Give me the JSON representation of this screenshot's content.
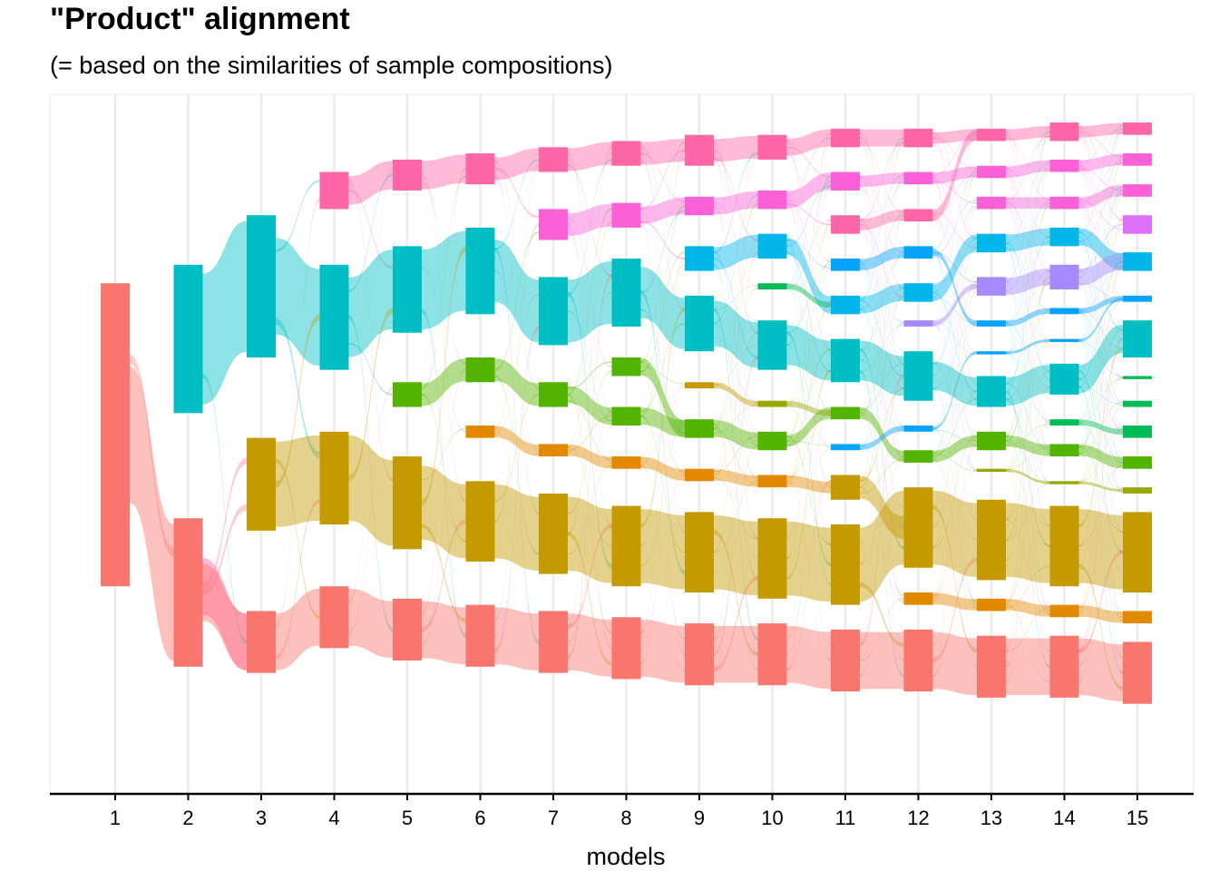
{
  "chart_data": {
    "type": "alluvial",
    "title": "\"Product\" alignment",
    "subtitle": "(= based on the similarities of sample compositions)",
    "xlabel": "models",
    "ylabel": "",
    "x": [
      1,
      2,
      3,
      4,
      5,
      6,
      7,
      8,
      9,
      10,
      11,
      12,
      13,
      14,
      15
    ],
    "grid": "vertical major only",
    "legend": "none",
    "palette": {
      "red": "#F8766D",
      "orange": "#E38900",
      "olive": "#C49A00",
      "olive2": "#99A800",
      "green": "#53B400",
      "teal": "#00BC56",
      "cyan": "#00C094",
      "sky": "#00BFC4",
      "blue": "#00B6EB",
      "azure": "#06A4FF",
      "royal": "#A58AFF",
      "purple": "#DF70F8",
      "magenta": "#FB61D7",
      "pink": "#FF66A8"
    },
    "nodes": [
      [
        {
          "c": "red",
          "s": 0.44,
          "e": 0.93
        }
      ],
      [
        {
          "c": "pink",
          "s": 0.82,
          "e": 1.04,
          "hidden": true
        },
        {
          "c": "sky",
          "s": 0.41,
          "e": 0.65
        },
        {
          "c": "red",
          "s": 0.82,
          "e": 1.06
        }
      ],
      [
        {
          "c": "sky",
          "s": 0.33,
          "e": 0.56
        },
        {
          "c": "olive",
          "s": 0.69,
          "e": 0.84
        },
        {
          "c": "red",
          "s": 0.97,
          "e": 1.07
        }
      ],
      [
        {
          "c": "pink",
          "s": 0.26,
          "e": 0.32
        },
        {
          "c": "sky",
          "s": 0.41,
          "e": 0.58
        },
        {
          "c": "olive",
          "s": 0.68,
          "e": 0.83
        },
        {
          "c": "red",
          "s": 0.93,
          "e": 1.03
        }
      ],
      [
        {
          "c": "pink",
          "s": 0.24,
          "e": 0.29
        },
        {
          "c": "sky",
          "s": 0.38,
          "e": 0.52
        },
        {
          "c": "green",
          "s": 0.6,
          "e": 0.64
        },
        {
          "c": "olive",
          "s": 0.72,
          "e": 0.87
        },
        {
          "c": "red",
          "s": 0.95,
          "e": 1.05
        }
      ],
      [
        {
          "c": "pink",
          "s": 0.23,
          "e": 0.28
        },
        {
          "c": "sky",
          "s": 0.35,
          "e": 0.49
        },
        {
          "c": "green",
          "s": 0.56,
          "e": 0.6
        },
        {
          "c": "orange",
          "s": 0.67,
          "e": 0.69
        },
        {
          "c": "olive",
          "s": 0.76,
          "e": 0.89
        },
        {
          "c": "red",
          "s": 0.96,
          "e": 1.06
        }
      ],
      [
        {
          "c": "pink",
          "s": 0.22,
          "e": 0.26
        },
        {
          "c": "magenta",
          "s": 0.32,
          "e": 0.37
        },
        {
          "c": "sky",
          "s": 0.43,
          "e": 0.54
        },
        {
          "c": "green",
          "s": 0.6,
          "e": 0.64
        },
        {
          "c": "orange",
          "s": 0.7,
          "e": 0.72
        },
        {
          "c": "olive",
          "s": 0.78,
          "e": 0.91
        },
        {
          "c": "red",
          "s": 0.97,
          "e": 1.07
        }
      ],
      [
        {
          "c": "pink",
          "s": 0.21,
          "e": 0.25
        },
        {
          "c": "magenta",
          "s": 0.31,
          "e": 0.35
        },
        {
          "c": "sky",
          "s": 0.4,
          "e": 0.51
        },
        {
          "c": "green",
          "s": 0.56,
          "e": 0.59
        },
        {
          "c": "green",
          "s": 0.64,
          "e": 0.67
        },
        {
          "c": "orange",
          "s": 0.72,
          "e": 0.74
        },
        {
          "c": "olive",
          "s": 0.8,
          "e": 0.93
        },
        {
          "c": "red",
          "s": 0.98,
          "e": 1.08
        }
      ],
      [
        {
          "c": "pink",
          "s": 0.2,
          "e": 0.25
        },
        {
          "c": "magenta",
          "s": 0.3,
          "e": 0.33
        },
        {
          "c": "blue",
          "s": 0.38,
          "e": 0.42
        },
        {
          "c": "sky",
          "s": 0.46,
          "e": 0.55
        },
        {
          "c": "olive",
          "s": 0.6,
          "e": 0.61
        },
        {
          "c": "green",
          "s": 0.66,
          "e": 0.69
        },
        {
          "c": "orange",
          "s": 0.74,
          "e": 0.76
        },
        {
          "c": "olive",
          "s": 0.81,
          "e": 0.94
        },
        {
          "c": "red",
          "s": 0.99,
          "e": 1.09
        }
      ],
      [
        {
          "c": "pink",
          "s": 0.2,
          "e": 0.24
        },
        {
          "c": "magenta",
          "s": 0.29,
          "e": 0.32
        },
        {
          "c": "blue",
          "s": 0.36,
          "e": 0.4
        },
        {
          "c": "teal",
          "s": 0.44,
          "e": 0.45
        },
        {
          "c": "sky",
          "s": 0.5,
          "e": 0.58
        },
        {
          "c": "olive2",
          "s": 0.63,
          "e": 0.64
        },
        {
          "c": "green",
          "s": 0.68,
          "e": 0.71
        },
        {
          "c": "orange",
          "s": 0.75,
          "e": 0.77
        },
        {
          "c": "olive",
          "s": 0.82,
          "e": 0.95
        },
        {
          "c": "red",
          "s": 0.99,
          "e": 1.09
        }
      ],
      [
        {
          "c": "pink",
          "s": 0.19,
          "e": 0.22
        },
        {
          "c": "magenta",
          "s": 0.26,
          "e": 0.29
        },
        {
          "c": "pink",
          "s": 0.33,
          "e": 0.36
        },
        {
          "c": "azure",
          "s": 0.4,
          "e": 0.42
        },
        {
          "c": "blue",
          "s": 0.46,
          "e": 0.49
        },
        {
          "c": "sky",
          "s": 0.53,
          "e": 0.6
        },
        {
          "c": "green",
          "s": 0.64,
          "e": 0.66
        },
        {
          "c": "azure",
          "s": 0.7,
          "e": 0.71
        },
        {
          "c": "olive",
          "s": 0.75,
          "e": 0.79
        },
        {
          "c": "olive",
          "s": 0.83,
          "e": 0.96
        },
        {
          "c": "red",
          "s": 1.0,
          "e": 1.1
        }
      ],
      [
        {
          "c": "pink",
          "s": 0.19,
          "e": 0.22
        },
        {
          "c": "magenta",
          "s": 0.26,
          "e": 0.28
        },
        {
          "c": "pink",
          "s": 0.32,
          "e": 0.34
        },
        {
          "c": "azure",
          "s": 0.38,
          "e": 0.4
        },
        {
          "c": "blue",
          "s": 0.44,
          "e": 0.47
        },
        {
          "c": "royal",
          "s": 0.5,
          "e": 0.51
        },
        {
          "c": "sky",
          "s": 0.55,
          "e": 0.63
        },
        {
          "c": "azure",
          "s": 0.67,
          "e": 0.68
        },
        {
          "c": "green",
          "s": 0.71,
          "e": 0.73
        },
        {
          "c": "olive",
          "s": 0.77,
          "e": 0.9
        },
        {
          "c": "orange",
          "s": 0.94,
          "e": 0.96
        },
        {
          "c": "red",
          "s": 1.0,
          "e": 1.1
        }
      ],
      [
        {
          "c": "pink",
          "s": 0.19,
          "e": 0.21
        },
        {
          "c": "magenta",
          "s": 0.25,
          "e": 0.27
        },
        {
          "c": "magenta",
          "s": 0.3,
          "e": 0.32
        },
        {
          "c": "blue",
          "s": 0.36,
          "e": 0.39
        },
        {
          "c": "royal",
          "s": 0.43,
          "e": 0.46
        },
        {
          "c": "azure",
          "s": 0.5,
          "e": 0.51
        },
        {
          "c": "azure",
          "s": 0.55,
          "e": 0.555
        },
        {
          "c": "sky",
          "s": 0.59,
          "e": 0.64
        },
        {
          "c": "green",
          "s": 0.68,
          "e": 0.71
        },
        {
          "c": "olive2",
          "s": 0.74,
          "e": 0.745
        },
        {
          "c": "olive",
          "s": 0.79,
          "e": 0.92
        },
        {
          "c": "orange",
          "s": 0.95,
          "e": 0.97
        },
        {
          "c": "red",
          "s": 1.01,
          "e": 1.11
        }
      ],
      [
        {
          "c": "pink",
          "s": 0.18,
          "e": 0.21
        },
        {
          "c": "magenta",
          "s": 0.24,
          "e": 0.26
        },
        {
          "c": "magenta",
          "s": 0.3,
          "e": 0.32
        },
        {
          "c": "blue",
          "s": 0.35,
          "e": 0.38
        },
        {
          "c": "royal",
          "s": 0.41,
          "e": 0.45
        },
        {
          "c": "azure",
          "s": 0.48,
          "e": 0.49
        },
        {
          "c": "azure",
          "s": 0.53,
          "e": 0.535
        },
        {
          "c": "sky",
          "s": 0.57,
          "e": 0.62
        },
        {
          "c": "teal",
          "s": 0.66,
          "e": 0.67
        },
        {
          "c": "green",
          "s": 0.7,
          "e": 0.72
        },
        {
          "c": "olive2",
          "s": 0.76,
          "e": 0.765
        },
        {
          "c": "olive",
          "s": 0.8,
          "e": 0.93
        },
        {
          "c": "orange",
          "s": 0.96,
          "e": 0.98
        },
        {
          "c": "red",
          "s": 1.01,
          "e": 1.11
        }
      ],
      [
        {
          "c": "pink",
          "s": 0.18,
          "e": 0.2
        },
        {
          "c": "magenta",
          "s": 0.23,
          "e": 0.25
        },
        {
          "c": "magenta",
          "s": 0.28,
          "e": 0.3
        },
        {
          "c": "purple",
          "s": 0.33,
          "e": 0.36
        },
        {
          "c": "blue",
          "s": 0.39,
          "e": 0.42
        },
        {
          "c": "azure",
          "s": 0.46,
          "e": 0.47
        },
        {
          "c": "sky",
          "s": 0.5,
          "e": 0.56
        },
        {
          "c": "teal",
          "s": 0.59,
          "e": 0.595
        },
        {
          "c": "teal",
          "s": 0.63,
          "e": 0.64
        },
        {
          "c": "teal",
          "s": 0.67,
          "e": 0.69
        },
        {
          "c": "green",
          "s": 0.72,
          "e": 0.74
        },
        {
          "c": "olive2",
          "s": 0.77,
          "e": 0.78
        },
        {
          "c": "olive",
          "s": 0.81,
          "e": 0.94
        },
        {
          "c": "orange",
          "s": 0.97,
          "e": 0.99
        },
        {
          "c": "red",
          "s": 1.02,
          "e": 1.12
        }
      ]
    ]
  }
}
